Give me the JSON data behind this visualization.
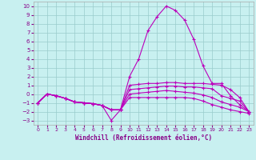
{
  "xlabel": "Windchill (Refroidissement éolien,°C)",
  "xlim": [
    -0.5,
    23.5
  ],
  "ylim": [
    -3.5,
    10.5
  ],
  "xticks": [
    0,
    1,
    2,
    3,
    4,
    5,
    6,
    7,
    8,
    9,
    10,
    11,
    12,
    13,
    14,
    15,
    16,
    17,
    18,
    19,
    20,
    21,
    22,
    23
  ],
  "yticks": [
    -3,
    -2,
    -1,
    0,
    1,
    2,
    3,
    4,
    5,
    6,
    7,
    8,
    9,
    10
  ],
  "bg_color": "#c8f0f0",
  "grid_color": "#99cccc",
  "line_color": "#bb00bb",
  "lines": [
    {
      "x": [
        0,
        1,
        2,
        3,
        4,
        5,
        6,
        7,
        8,
        9,
        10,
        11,
        12,
        13,
        14,
        15,
        16,
        17,
        18,
        19,
        20,
        21,
        22,
        23
      ],
      "y": [
        -1.0,
        0.0,
        -0.2,
        -0.5,
        -0.9,
        -1.0,
        -1.1,
        -1.3,
        -3.0,
        -1.8,
        2.0,
        4.0,
        7.2,
        8.8,
        10.0,
        9.5,
        8.4,
        6.2,
        3.2,
        1.2,
        1.2,
        -0.2,
        -1.2,
        -2.0
      ]
    },
    {
      "x": [
        0,
        1,
        2,
        3,
        4,
        5,
        6,
        7,
        8,
        9,
        10,
        11,
        12,
        13,
        14,
        15,
        16,
        17,
        18,
        19,
        20,
        21,
        22,
        23
      ],
      "y": [
        -1.0,
        0.0,
        -0.2,
        -0.5,
        -0.9,
        -1.0,
        -1.1,
        -1.3,
        -1.8,
        -1.8,
        1.0,
        1.1,
        1.2,
        1.2,
        1.3,
        1.3,
        1.2,
        1.2,
        1.2,
        1.1,
        1.0,
        0.5,
        -0.4,
        -2.0
      ]
    },
    {
      "x": [
        0,
        1,
        2,
        3,
        4,
        5,
        6,
        7,
        8,
        9,
        10,
        11,
        12,
        13,
        14,
        15,
        16,
        17,
        18,
        19,
        20,
        21,
        22,
        23
      ],
      "y": [
        -1.0,
        0.0,
        -0.2,
        -0.5,
        -0.9,
        -1.0,
        -1.1,
        -1.3,
        -1.8,
        -1.8,
        0.5,
        0.6,
        0.7,
        0.8,
        0.9,
        0.9,
        0.8,
        0.8,
        0.7,
        0.6,
        -0.2,
        -0.5,
        -0.8,
        -2.0
      ]
    },
    {
      "x": [
        0,
        1,
        2,
        3,
        4,
        5,
        6,
        7,
        8,
        9,
        10,
        11,
        12,
        13,
        14,
        15,
        16,
        17,
        18,
        19,
        20,
        21,
        22,
        23
      ],
      "y": [
        -1.0,
        0.0,
        -0.2,
        -0.5,
        -0.9,
        -1.0,
        -1.1,
        -1.3,
        -1.8,
        -1.8,
        0.0,
        0.1,
        0.2,
        0.3,
        0.4,
        0.3,
        0.2,
        0.1,
        -0.1,
        -0.4,
        -0.9,
        -1.2,
        -1.5,
        -2.0
      ]
    },
    {
      "x": [
        0,
        1,
        2,
        3,
        4,
        5,
        6,
        7,
        8,
        9,
        10,
        11,
        12,
        13,
        14,
        15,
        16,
        17,
        18,
        19,
        20,
        21,
        22,
        23
      ],
      "y": [
        -1.0,
        0.0,
        -0.2,
        -0.5,
        -0.9,
        -1.0,
        -1.1,
        -1.3,
        -1.8,
        -1.8,
        -0.4,
        -0.4,
        -0.4,
        -0.4,
        -0.4,
        -0.4,
        -0.4,
        -0.5,
        -0.8,
        -1.2,
        -1.5,
        -1.8,
        -2.0,
        -2.2
      ]
    }
  ]
}
